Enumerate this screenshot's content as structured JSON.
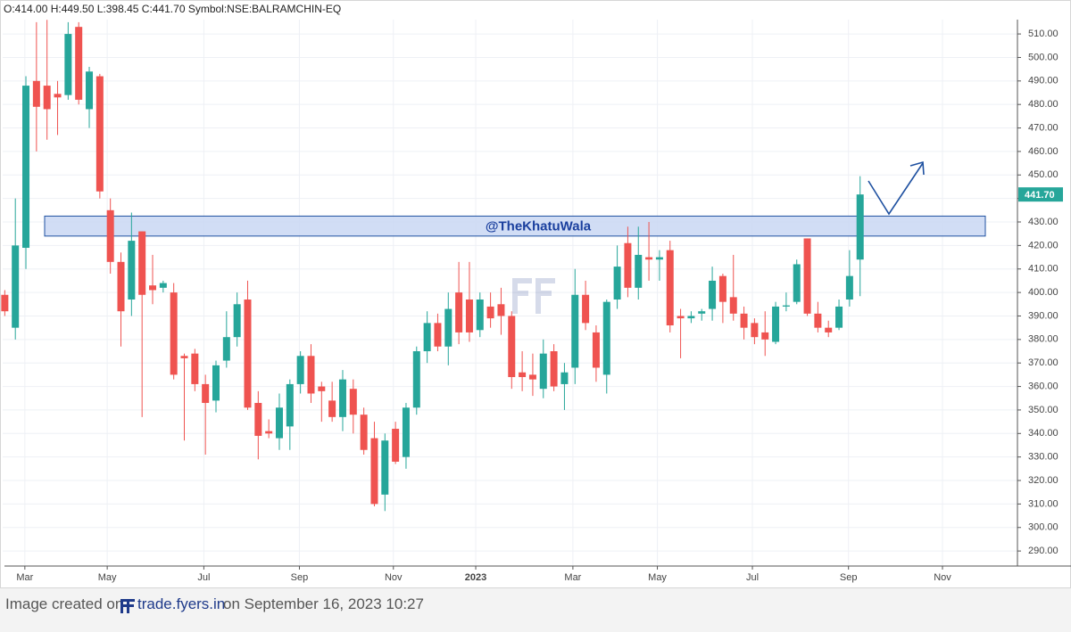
{
  "chart_data": {
    "type": "candlestick",
    "header": "O:414.00 H:449.50 L:398.45 C:441.70 Symbol:NSE:BALRAMCHIN-EQ",
    "up_color": "#26a69a",
    "down_color": "#ef5350",
    "open": [
      399,
      385,
      419,
      490,
      488,
      484.5,
      484,
      513,
      478,
      492,
      435,
      413,
      397,
      426,
      403,
      402,
      400,
      373,
      374,
      361,
      354,
      371,
      381,
      397,
      353,
      341,
      338,
      343,
      361,
      373,
      360,
      354,
      347,
      359,
      348,
      338,
      314,
      342,
      330,
      351,
      375,
      387,
      377,
      400,
      397,
      384,
      394,
      395,
      390,
      366,
      365,
      359,
      375,
      361,
      368,
      399,
      383,
      365,
      397,
      421,
      402,
      415,
      414,
      418,
      390,
      389,
      391,
      393,
      407,
      398,
      391,
      387,
      383,
      379,
      394,
      396,
      423,
      391,
      385,
      385,
      397,
      414
    ],
    "high": [
      401,
      440,
      492,
      515,
      516,
      490,
      515,
      515,
      496,
      493,
      440,
      417,
      434,
      426,
      416,
      405,
      404,
      374,
      376,
      365,
      371,
      392,
      400,
      405,
      358,
      346,
      357,
      363,
      375,
      378,
      362,
      362,
      367,
      363,
      351,
      345,
      340,
      345,
      353,
      377,
      392,
      391,
      400,
      413,
      413,
      400,
      400,
      402,
      392,
      375,
      374,
      380,
      378,
      370,
      410,
      405,
      386,
      397,
      420,
      428,
      428,
      430,
      418,
      422,
      393,
      392,
      393,
      411,
      408,
      416,
      394,
      389,
      392,
      396,
      400,
      414,
      423,
      396,
      388,
      397,
      418,
      449.5
    ],
    "low": [
      390,
      380,
      410,
      460,
      465,
      467,
      482,
      480,
      470,
      440,
      408,
      377,
      390,
      347,
      395,
      400,
      363,
      337,
      358,
      331,
      349,
      368,
      377,
      350,
      329,
      338,
      333,
      333,
      357,
      353,
      345,
      345,
      341,
      340,
      331,
      309,
      307,
      327,
      325,
      348,
      370,
      375,
      369,
      378,
      379,
      381,
      385,
      382,
      359,
      358,
      356,
      355,
      358,
      350,
      361,
      384,
      362,
      357,
      393,
      398,
      397,
      405,
      405,
      383,
      372,
      387,
      388,
      388,
      387,
      388,
      380,
      378,
      373,
      378,
      392,
      395,
      390,
      383,
      381,
      384,
      394,
      398.45
    ],
    "close": [
      392,
      420,
      488,
      479,
      478,
      483,
      510,
      482,
      494,
      443,
      413,
      392,
      422,
      399,
      401,
      404,
      365,
      372,
      361,
      353,
      369,
      381,
      395,
      351,
      339,
      340,
      351,
      361,
      373,
      357,
      358,
      347,
      363,
      348,
      333,
      310,
      337,
      328,
      351,
      375,
      387,
      377,
      393,
      383,
      383,
      397,
      389,
      390,
      364,
      364,
      363,
      374,
      360,
      366,
      399,
      387,
      368,
      396,
      411,
      402,
      416,
      414,
      415,
      386,
      389,
      390,
      392,
      405,
      396,
      391,
      385,
      381,
      380,
      394,
      394.5,
      412,
      391,
      385,
      383,
      394,
      407,
      441.7
    ],
    "last_label": "441.70",
    "zone": {
      "text": "@TheKhatuWala",
      "top": 432.5,
      "bottom": 424
    },
    "xlim": [
      -0.2,
      95.9
    ],
    "xticks": [
      {
        "value": 1.9,
        "label": "Mar"
      },
      {
        "value": 9.7,
        "label": "May"
      },
      {
        "value": 18.85,
        "label": "Jul"
      },
      {
        "value": 27.9,
        "label": "Sep"
      },
      {
        "value": 36.8,
        "label": "Nov"
      },
      {
        "value": 44.6,
        "label": "2023"
      },
      {
        "value": 53.8,
        "label": "Mar"
      },
      {
        "value": 61.8,
        "label": "May"
      },
      {
        "value": 70.8,
        "label": "Jul"
      },
      {
        "value": 79.9,
        "label": "Sep"
      },
      {
        "value": 88.8,
        "label": "Nov"
      }
    ],
    "ylim": [
      283.6,
      516.1
    ],
    "yticks": [
      {
        "value": 290,
        "label": "290.00"
      },
      {
        "value": 300,
        "label": "300.00"
      },
      {
        "value": 310,
        "label": "310.00"
      },
      {
        "value": 320,
        "label": "320.00"
      },
      {
        "value": 330,
        "label": "330.00"
      },
      {
        "value": 340,
        "label": "340.00"
      },
      {
        "value": 350,
        "label": "350.00"
      },
      {
        "value": 360,
        "label": "360.00"
      },
      {
        "value": 370,
        "label": "370.00"
      },
      {
        "value": 380,
        "label": "380.00"
      },
      {
        "value": 390,
        "label": "390.00"
      },
      {
        "value": 400,
        "label": "400.00"
      },
      {
        "value": 410,
        "label": "410.00"
      },
      {
        "value": 420,
        "label": "420.00"
      },
      {
        "value": 430,
        "label": "430.00"
      },
      {
        "value": 440,
        "label": "440.00"
      },
      {
        "value": 450,
        "label": "450.00"
      },
      {
        "value": 460,
        "label": "460.00"
      },
      {
        "value": 470,
        "label": "470.00"
      },
      {
        "value": 480,
        "label": "480.00"
      },
      {
        "value": 490,
        "label": "490.00"
      },
      {
        "value": 500,
        "label": "500.00"
      },
      {
        "value": 510,
        "label": "510.00"
      }
    ],
    "grid": true,
    "footer": {
      "prefix": "Image created on",
      "site": "trade.fyers.in",
      "suffix": "on September 16, 2023 10:27"
    }
  }
}
